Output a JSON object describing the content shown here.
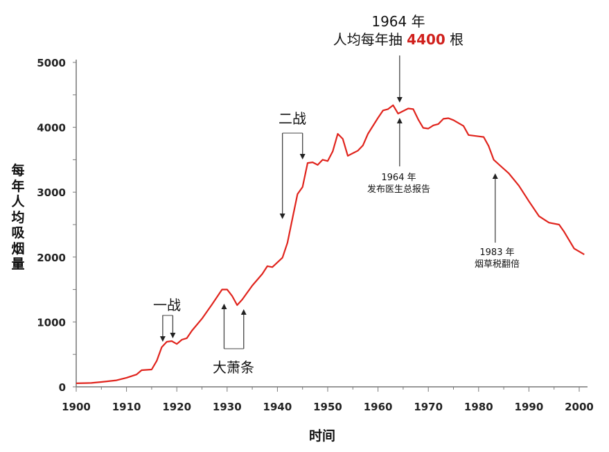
{
  "chart_data": {
    "type": "line",
    "xlabel": "时间",
    "ylabel": "每年人均吸烟量",
    "xlim": [
      1900,
      2002
    ],
    "ylim": [
      0,
      5000
    ],
    "xticks": [
      1900,
      1910,
      1920,
      1930,
      1940,
      1950,
      1960,
      1970,
      1980,
      1990,
      2000
    ],
    "yticks": [
      0,
      1000,
      2000,
      3000,
      4000,
      5000
    ],
    "grid": false,
    "line_color": "#e0231c",
    "x": [
      1900,
      1903,
      1905,
      1908,
      1910,
      1912,
      1913,
      1915,
      1916,
      1917,
      1918,
      1919,
      1920,
      1921,
      1922,
      1923,
      1925,
      1927,
      1929,
      1930,
      1931,
      1932,
      1933,
      1935,
      1937,
      1938,
      1939,
      1941,
      1942,
      1943,
      1944,
      1945,
      1946,
      1947,
      1948,
      1949,
      1950,
      1951,
      1952,
      1953,
      1954,
      1955,
      1956,
      1957,
      1958,
      1960,
      1961,
      1962,
      1963,
      1964,
      1966,
      1967,
      1968,
      1969,
      1970,
      1971,
      1972,
      1973,
      1974,
      1975,
      1977,
      1978,
      1980,
      1981,
      1982,
      1983,
      1984,
      1986,
      1988,
      1990,
      1992,
      1994,
      1996,
      1997,
      1999,
      2001
    ],
    "y": [
      54,
      60,
      75,
      100,
      140,
      190,
      256,
      267,
      400,
      610,
      694,
      705,
      660,
      726,
      750,
      865,
      1050,
      1270,
      1500,
      1500,
      1400,
      1260,
      1345,
      1560,
      1740,
      1860,
      1845,
      1990,
      2220,
      2600,
      2970,
      3080,
      3450,
      3460,
      3420,
      3500,
      3480,
      3630,
      3900,
      3820,
      3560,
      3600,
      3640,
      3720,
      3900,
      4145,
      4260,
      4280,
      4340,
      4210,
      4290,
      4280,
      4120,
      3990,
      3980,
      4030,
      4050,
      4130,
      4140,
      4110,
      4020,
      3880,
      3860,
      3850,
      3710,
      3500,
      3430,
      3290,
      3100,
      2860,
      2630,
      2530,
      2500,
      2390,
      2130,
      2040
    ],
    "annotations": {
      "ww1": "一战",
      "depression": "大萧条",
      "ww2": "二战",
      "peak_line1": "1964 年",
      "peak_line2a": "人均每年抽 ",
      "peak_value": "4400",
      "peak_line2b": " 根",
      "report_line1": "1964 年",
      "report_line2": "发布医生总报告",
      "tax_line1": "1983 年",
      "tax_line2": "烟草税翻倍"
    }
  }
}
